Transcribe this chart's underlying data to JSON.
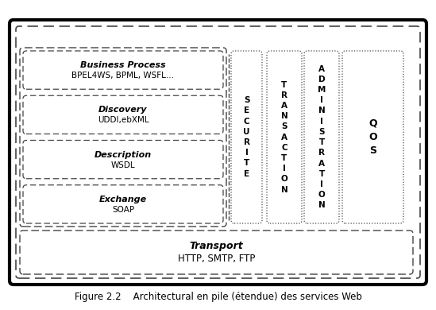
{
  "title": "Figure 2.2    Architectural en pile (étendue) des services Web",
  "layers": [
    {
      "label_italic": "Business Process",
      "label_normal": "BPEL4WS, BPML, WSFL..."
    },
    {
      "label_italic": "Discovery",
      "label_normal": "UDDI,ebXML"
    },
    {
      "label_italic": "Description",
      "label_normal": "WSDL"
    },
    {
      "label_italic": "Exchange",
      "label_normal": "SOAP"
    }
  ],
  "transport_italic": "Transport",
  "transport_normal": "HTTP, SMTP, FTP",
  "col_labels": [
    "S\nE\nC\nU\nR\nI\nT\nE",
    "T\nR\nA\nN\nS\nA\nC\nT\nI\nO\nN",
    "A\nD\nM\nI\nN\nI\nS\nT\nR\nA\nT\nI\nO\nN",
    "Q\nO\nS"
  ],
  "bg_color": "#ffffff",
  "border_color": "#000000",
  "gray_color": "#444444"
}
